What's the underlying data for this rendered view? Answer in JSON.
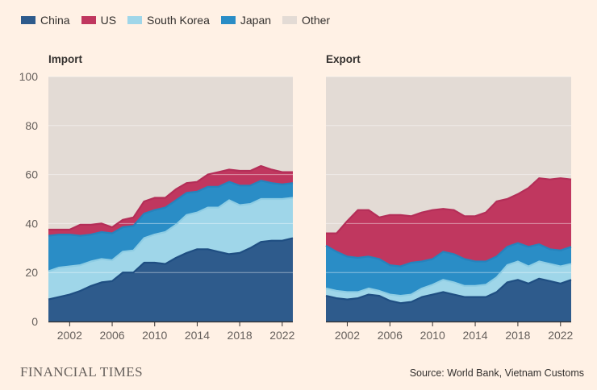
{
  "legend": [
    {
      "name": "China",
      "color": "#2E5B8C"
    },
    {
      "name": "US",
      "color": "#C0375F"
    },
    {
      "name": "South Korea",
      "color": "#9FD6E9"
    },
    {
      "name": "Japan",
      "color": "#2A8DC6"
    },
    {
      "name": "Other",
      "color": "#E3DBD5"
    }
  ],
  "footer": {
    "brand": "FINANCIAL TIMES",
    "source": "Source: World Bank, Vietnam Customs"
  },
  "chart_data": [
    {
      "type": "area",
      "stacked": true,
      "title": "Import",
      "x": [
        2000,
        2001,
        2002,
        2003,
        2004,
        2005,
        2006,
        2007,
        2008,
        2009,
        2010,
        2011,
        2012,
        2013,
        2014,
        2015,
        2016,
        2017,
        2018,
        2019,
        2020,
        2021,
        2022,
        2023
      ],
      "ylim": [
        0,
        100
      ],
      "yticks": [
        0,
        20,
        40,
        60,
        80,
        100
      ],
      "xticks": [
        2002,
        2006,
        2010,
        2014,
        2018,
        2022
      ],
      "grid": true,
      "series": [
        {
          "name": "China",
          "values": [
            9,
            10,
            11,
            12.5,
            14.5,
            16,
            16.5,
            20,
            20,
            24,
            24,
            23.5,
            26,
            28,
            29.5,
            29.5,
            28.5,
            27.5,
            28,
            30,
            32.5,
            33,
            33,
            34
          ]
        },
        {
          "name": "South Korea",
          "values": [
            11.5,
            12,
            11.5,
            10.5,
            10,
            9.5,
            8.5,
            8.5,
            9,
            10,
            11.5,
            13,
            13.5,
            15.5,
            15,
            17,
            18,
            22,
            19.5,
            18,
            17.5,
            17,
            17,
            16.5
          ]
        },
        {
          "name": "Japan",
          "values": [
            14.5,
            13.5,
            13,
            12,
            11,
            11,
            11,
            10,
            10,
            10,
            10,
            10,
            10,
            9,
            8.5,
            8.5,
            8.5,
            7.5,
            8,
            7.5,
            7.5,
            6.5,
            6,
            6
          ]
        },
        {
          "name": "US",
          "values": [
            2.5,
            2,
            2,
            4.5,
            4,
            3.5,
            2.5,
            3,
            3.5,
            5,
            5,
            4,
            4.5,
            4,
            4,
            5,
            6,
            5,
            6,
            6,
            6,
            5.5,
            5,
            4.5
          ]
        },
        {
          "name": "Other",
          "values": [
            62.5,
            62.5,
            62.5,
            60.5,
            60.5,
            60,
            61.5,
            58.5,
            57.5,
            51,
            49.5,
            49.5,
            46,
            43.5,
            43,
            40,
            39,
            38,
            38.5,
            38.5,
            36.5,
            38,
            39,
            39
          ]
        }
      ]
    },
    {
      "type": "area",
      "stacked": true,
      "title": "Export",
      "x": [
        2000,
        2001,
        2002,
        2003,
        2004,
        2005,
        2006,
        2007,
        2008,
        2009,
        2010,
        2011,
        2012,
        2013,
        2014,
        2015,
        2016,
        2017,
        2018,
        2019,
        2020,
        2021,
        2022,
        2023
      ],
      "ylim": [
        0,
        100
      ],
      "yticks": [
        0,
        20,
        40,
        60,
        80,
        100
      ],
      "xticks": [
        2002,
        2006,
        2010,
        2014,
        2018,
        2022
      ],
      "grid": true,
      "series": [
        {
          "name": "China",
          "values": [
            10.5,
            9.5,
            9,
            9.5,
            11,
            10.5,
            8.5,
            7.5,
            8,
            10,
            11,
            12,
            11,
            10,
            10,
            10,
            12,
            16,
            17,
            15.5,
            17.5,
            16.5,
            15.5,
            17
          ]
        },
        {
          "name": "South Korea",
          "values": [
            3,
            3,
            3,
            2.5,
            2.5,
            2,
            2.5,
            3,
            3,
            3.5,
            4,
            5,
            5,
            4.5,
            4.5,
            5,
            6,
            7,
            7.5,
            7,
            7,
            7,
            7,
            6.5
          ]
        },
        {
          "name": "Japan",
          "values": [
            17.5,
            16,
            14.5,
            14,
            13,
            13,
            12,
            12,
            13,
            11,
            10.5,
            11.5,
            11.5,
            11,
            10,
            9.5,
            8.5,
            7.5,
            7.5,
            8,
            7,
            6,
            6.5,
            7
          ]
        },
        {
          "name": "US",
          "values": [
            5,
            7.5,
            14.5,
            19.5,
            19,
            17,
            20.5,
            21,
            19,
            20,
            20,
            17.5,
            18,
            17.5,
            18.5,
            20,
            22.5,
            19.5,
            20,
            24,
            27,
            28.5,
            29.5,
            27.5
          ]
        },
        {
          "name": "Other",
          "values": [
            64,
            64,
            59,
            54.5,
            54.5,
            57.5,
            56.5,
            56.5,
            57,
            55.5,
            54.5,
            54,
            54.5,
            57,
            57,
            55.5,
            51,
            50,
            48,
            45.5,
            41.5,
            42,
            41.5,
            42
          ]
        }
      ]
    }
  ]
}
